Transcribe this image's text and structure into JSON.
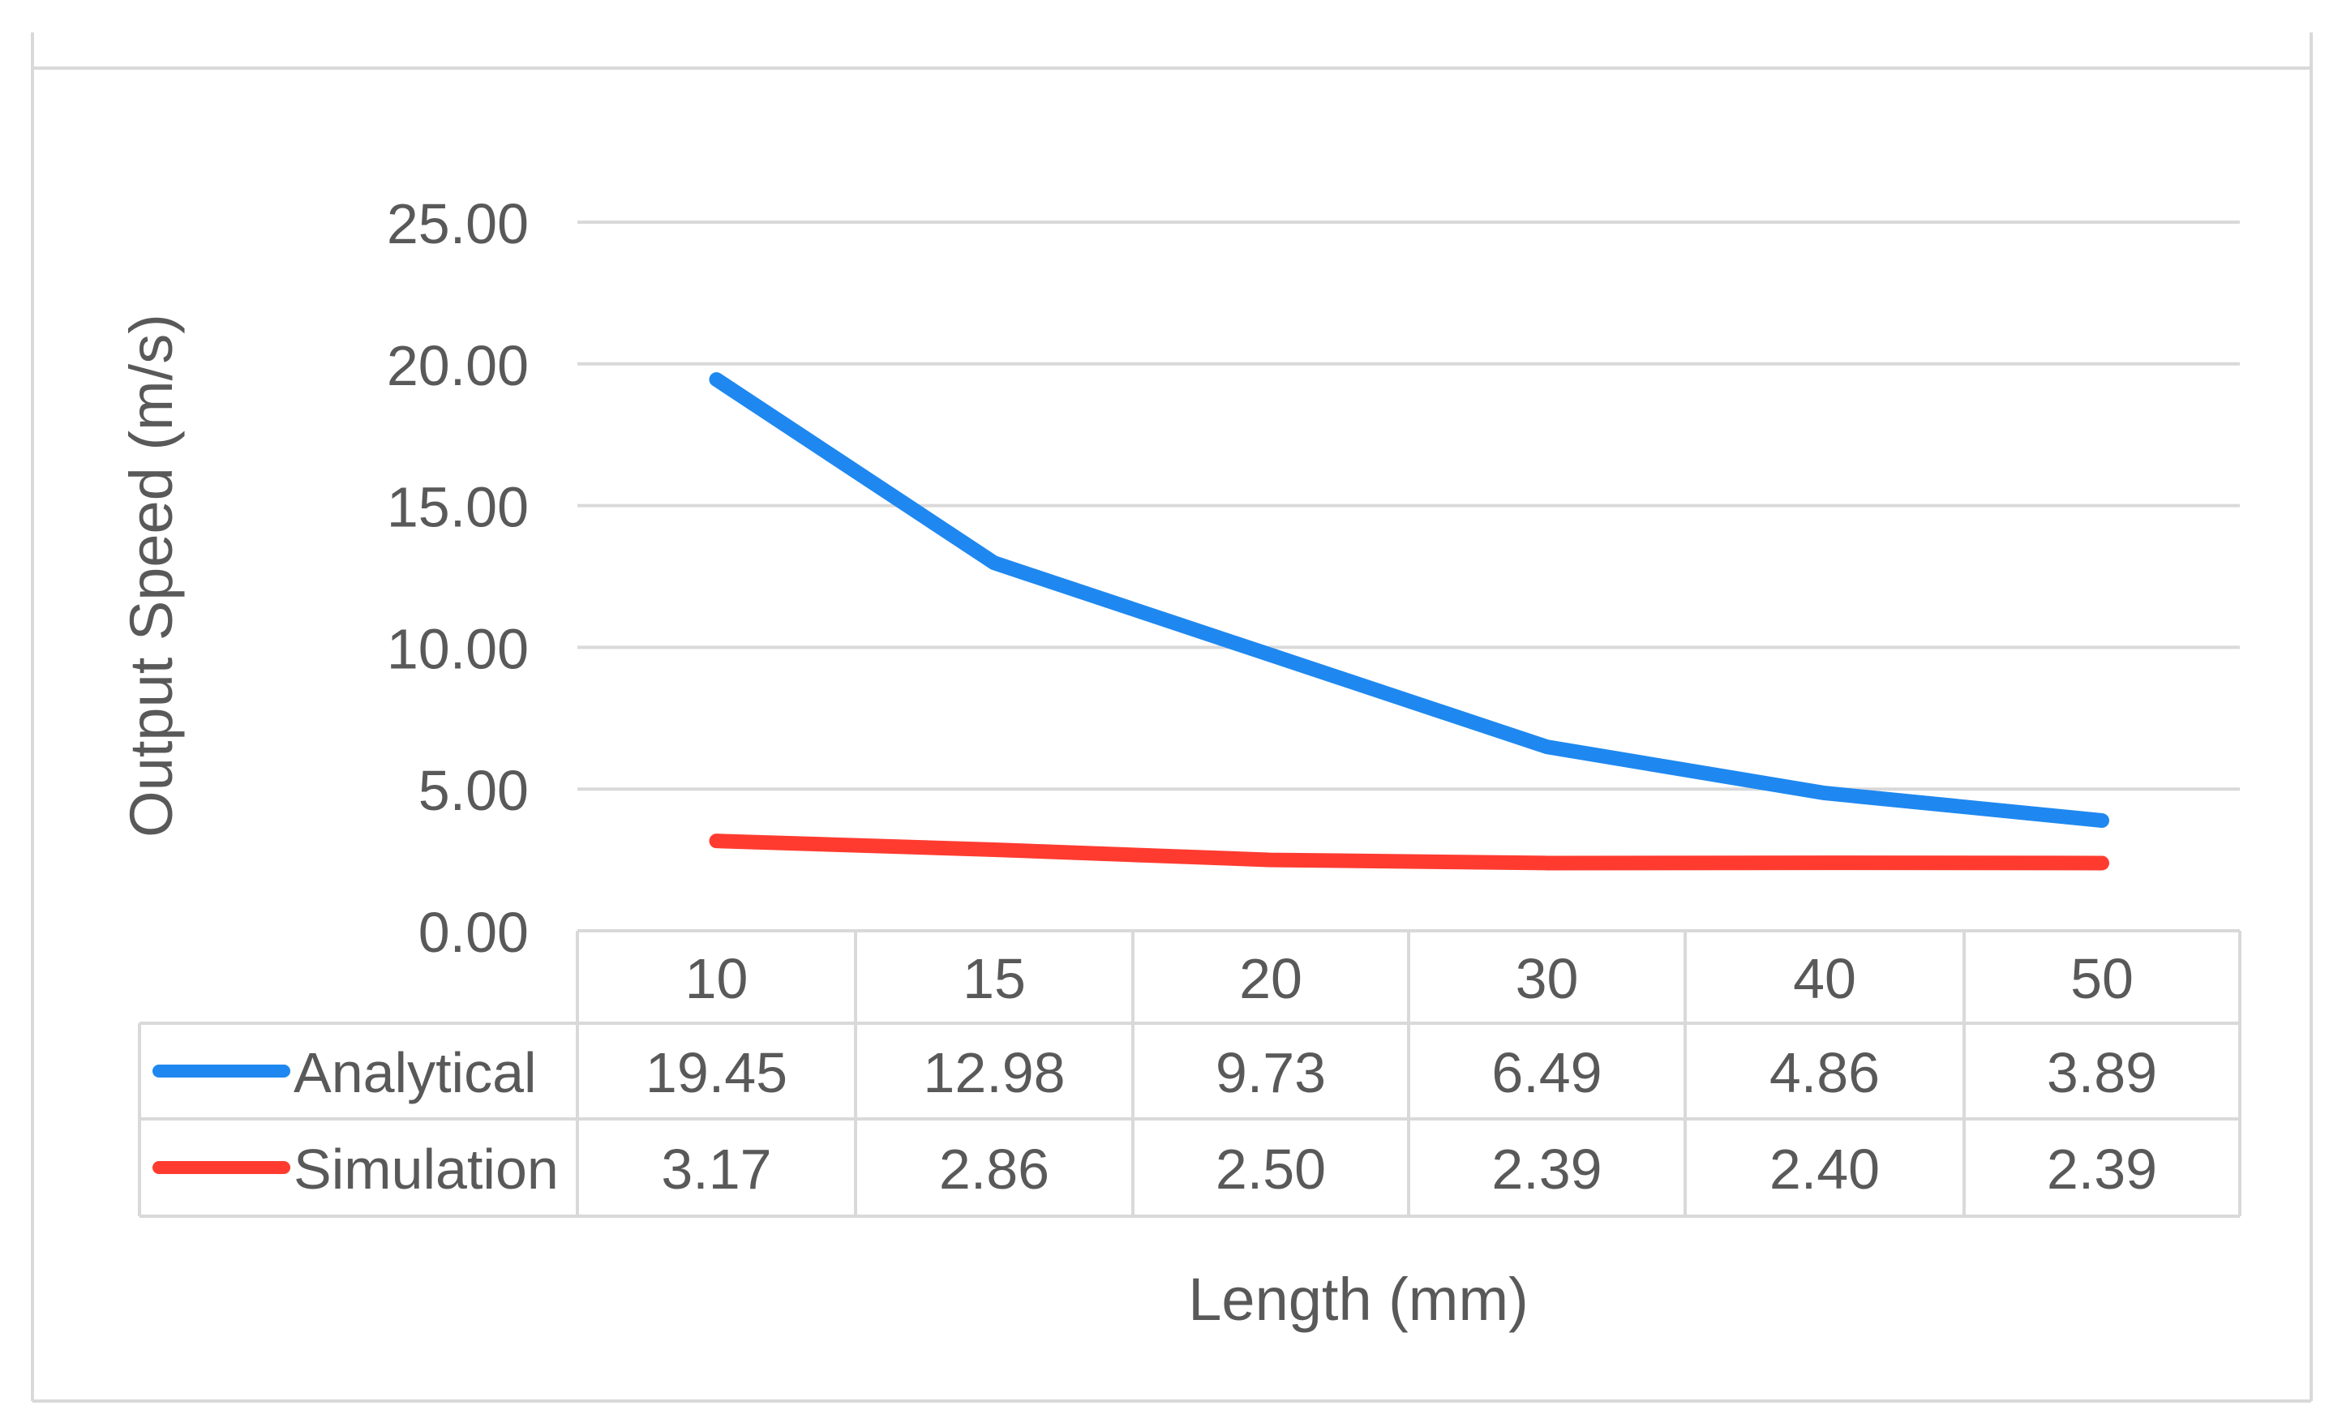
{
  "chart_data": {
    "type": "line",
    "xlabel": "Length (mm)",
    "ylabel": "Output  Speed (m/s)",
    "categories": [
      "10",
      "15",
      "20",
      "30",
      "40",
      "50"
    ],
    "y_ticks": [
      "0.00",
      "5.00",
      "10.00",
      "15.00",
      "20.00",
      "25.00"
    ],
    "ylim": [
      0,
      25
    ],
    "grid": true,
    "legend": "data-table",
    "series": [
      {
        "name": "Analytical",
        "color": "#1e88f0",
        "values": [
          19.45,
          12.98,
          9.73,
          6.49,
          4.86,
          3.89
        ],
        "labels": [
          "19.45",
          "12.98",
          "9.73",
          "6.49",
          "4.86",
          "3.89"
        ]
      },
      {
        "name": "Simulation",
        "color": "#ff3b30",
        "values": [
          3.17,
          2.86,
          2.5,
          2.39,
          2.4,
          2.39
        ],
        "labels": [
          "3.17",
          "2.86",
          "2.50",
          "2.39",
          "2.40",
          "2.39"
        ]
      }
    ]
  }
}
